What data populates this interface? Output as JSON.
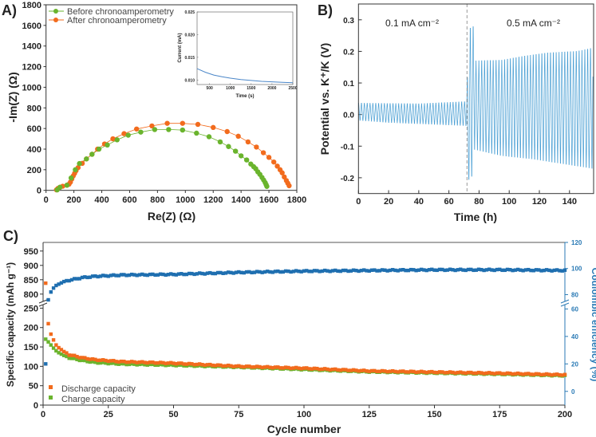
{
  "chart_data": [
    {
      "panel": "A)",
      "type": "scatter",
      "xlabel": "Re(Z) (Ω)",
      "ylabel": "-Im(Z) (Ω)",
      "xlim": [
        0,
        1800
      ],
      "ylim": [
        0,
        1800
      ],
      "xticks": [
        0,
        200,
        400,
        600,
        800,
        1000,
        1200,
        1400,
        1600,
        1800
      ],
      "yticks": [
        0,
        200,
        400,
        600,
        800,
        1000,
        1200,
        1400,
        1600,
        1800
      ],
      "legend_position": "top-left",
      "series": [
        {
          "name": "Before chronoamperometry",
          "color": "#6ab42d",
          "points": [
            [
              80,
              5
            ],
            [
              100,
              30
            ],
            [
              150,
              50
            ],
            [
              180,
              120
            ],
            [
              210,
              200
            ],
            [
              240,
              260
            ],
            [
              290,
              305
            ],
            [
              330,
              350
            ],
            [
              380,
              400
            ],
            [
              440,
              440
            ],
            [
              510,
              490
            ],
            [
              590,
              535
            ],
            [
              680,
              565
            ],
            [
              780,
              590
            ],
            [
              880,
              590
            ],
            [
              980,
              585
            ],
            [
              1080,
              555
            ],
            [
              1170,
              520
            ],
            [
              1250,
              470
            ],
            [
              1310,
              425
            ],
            [
              1360,
              380
            ],
            [
              1400,
              335
            ],
            [
              1440,
              295
            ],
            [
              1470,
              255
            ],
            [
              1490,
              230
            ],
            [
              1505,
              210
            ],
            [
              1520,
              180
            ],
            [
              1535,
              155
            ],
            [
              1550,
              125
            ],
            [
              1562,
              100
            ],
            [
              1573,
              75
            ],
            [
              1580,
              55
            ],
            [
              1585,
              38
            ]
          ]
        },
        {
          "name": "After chronoamperometry",
          "color": "#f26b1d",
          "points": [
            [
              75,
              5
            ],
            [
              85,
              18
            ],
            [
              100,
              30
            ],
            [
              120,
              40
            ],
            [
              150,
              50
            ],
            [
              165,
              60
            ],
            [
              175,
              80
            ],
            [
              185,
              110
            ],
            [
              195,
              140
            ],
            [
              205,
              165
            ],
            [
              215,
              190
            ],
            [
              230,
              220
            ],
            [
              260,
              262
            ],
            [
              290,
              305
            ],
            [
              330,
              350
            ],
            [
              370,
              400
            ],
            [
              420,
              450
            ],
            [
              480,
              500
            ],
            [
              560,
              550
            ],
            [
              650,
              595
            ],
            [
              760,
              625
            ],
            [
              870,
              650
            ],
            [
              980,
              650
            ],
            [
              1090,
              640
            ],
            [
              1200,
              610
            ],
            [
              1300,
              570
            ],
            [
              1380,
              525
            ],
            [
              1450,
              470
            ],
            [
              1510,
              420
            ],
            [
              1560,
              365
            ],
            [
              1600,
              320
            ],
            [
              1635,
              275
            ],
            [
              1660,
              235
            ],
            [
              1680,
              200
            ],
            [
              1695,
              170
            ],
            [
              1710,
              130
            ],
            [
              1725,
              95
            ],
            [
              1735,
              70
            ],
            [
              1745,
              45
            ]
          ]
        }
      ],
      "inset": {
        "type": "line",
        "xlabel": "Time (s)",
        "ylabel": "Current (mA)",
        "xlim": [
          200,
          2500
        ],
        "ylim": [
          0.009,
          0.025
        ],
        "xticks": [
          500,
          1000,
          1500,
          2000,
          2500
        ],
        "yticks": [
          "0.010",
          "0.015",
          "0.020",
          "0.025"
        ],
        "color": "#4a86c8",
        "points": [
          [
            200,
            0.0125
          ],
          [
            400,
            0.0117
          ],
          [
            600,
            0.0111
          ],
          [
            800,
            0.0107
          ],
          [
            1000,
            0.0104
          ],
          [
            1250,
            0.0101
          ],
          [
            1500,
            0.0099
          ],
          [
            1750,
            0.0097
          ],
          [
            2000,
            0.0096
          ],
          [
            2250,
            0.0095
          ],
          [
            2500,
            0.0094
          ]
        ]
      }
    },
    {
      "panel": "B)",
      "type": "line",
      "xlabel": "Time (h)",
      "ylabel": "Potential vs. K⁺/K (V)",
      "xlim": [
        0,
        156
      ],
      "ylim": [
        -0.25,
        0.35
      ],
      "xticks": [
        0,
        20,
        40,
        60,
        80,
        100,
        120,
        140
      ],
      "yticks": [
        "-0.2",
        "-0.1",
        "0.0",
        "0.1",
        "0.2",
        "0.3"
      ],
      "color": "#4a9fd4",
      "divider_time_h": 72,
      "annotations": [
        "0.1 mA cm⁻²",
        "0.5 mA cm⁻²"
      ],
      "cycle_period_h": 1.9,
      "upper_envelope": [
        [
          0,
          0.036
        ],
        [
          40,
          0.034
        ],
        [
          72,
          0.041
        ],
        [
          72.6,
          0.27
        ],
        [
          76,
          0.278
        ],
        [
          76.6,
          0.17
        ],
        [
          95,
          0.172
        ],
        [
          110,
          0.185
        ],
        [
          125,
          0.195
        ],
        [
          145,
          0.2
        ],
        [
          155,
          0.21
        ]
      ],
      "lower_envelope": [
        [
          0,
          -0.018
        ],
        [
          20,
          -0.025
        ],
        [
          72,
          -0.035
        ],
        [
          72.3,
          -0.21
        ],
        [
          76,
          -0.19
        ],
        [
          76.6,
          -0.11
        ],
        [
          95,
          -0.13
        ],
        [
          115,
          -0.14
        ],
        [
          135,
          -0.155
        ],
        [
          155,
          -0.17
        ]
      ],
      "final_value": 0.12
    },
    {
      "panel": "C)",
      "type": "scatter",
      "xlabel": "Cycle number",
      "ylabel": "Specific capacity (mAh g⁻¹)",
      "y2label": "Coulombic efficiency (%)",
      "xlim": [
        0,
        200
      ],
      "xticks": [
        0,
        25,
        50,
        75,
        100,
        125,
        150,
        175,
        200
      ],
      "yticks": [
        0,
        50,
        100,
        150,
        200,
        250,
        800,
        850,
        900,
        950
      ],
      "y_break": [
        255,
        780
      ],
      "y2ticks": [
        0,
        20,
        40,
        60,
        80,
        100,
        120
      ],
      "y2_break": [
        62,
        76
      ],
      "legend_position": "bottom-left",
      "series": [
        {
          "name": "Discharge capacity",
          "color": "#f26b1d",
          "axis": "left",
          "keyframes": [
            [
              1,
              838
            ],
            [
              2,
              210
            ],
            [
              3,
              183
            ],
            [
              4,
              168
            ],
            [
              5,
              155
            ],
            [
              6,
              148
            ],
            [
              8,
              138
            ],
            [
              10,
              130
            ],
            [
              15,
              122
            ],
            [
              20,
              117
            ],
            [
              30,
              112
            ],
            [
              50,
              108
            ],
            [
              75,
              100
            ],
            [
              100,
              95
            ],
            [
              125,
              88
            ],
            [
              150,
              85
            ],
            [
              175,
              82
            ],
            [
              200,
              78
            ]
          ]
        },
        {
          "name": "Charge capacity",
          "color": "#6ab42d",
          "axis": "left",
          "keyframes": [
            [
              1,
              170
            ],
            [
              2,
              163
            ],
            [
              3,
              155
            ],
            [
              4,
              147
            ],
            [
              5,
              140
            ],
            [
              6,
              135
            ],
            [
              8,
              128
            ],
            [
              10,
              122
            ],
            [
              15,
              115
            ],
            [
              20,
              110
            ],
            [
              30,
              106
            ],
            [
              50,
              103
            ],
            [
              75,
              98
            ],
            [
              100,
              92
            ],
            [
              125,
              86
            ],
            [
              150,
              83
            ],
            [
              175,
              80
            ],
            [
              200,
              76
            ]
          ]
        },
        {
          "name": "Coulombic efficiency",
          "color": "#1f6fb0",
          "axis": "right",
          "keyframes": [
            [
              1,
              20
            ],
            [
              2,
              76
            ],
            [
              3,
              82
            ],
            [
              4,
              85
            ],
            [
              5,
              87
            ],
            [
              6,
              88
            ],
            [
              8,
              90
            ],
            [
              10,
              91
            ],
            [
              15,
              93
            ],
            [
              20,
              94
            ],
            [
              30,
              95
            ],
            [
              50,
              95.5
            ],
            [
              75,
              97
            ],
            [
              100,
              98
            ],
            [
              125,
              98.5
            ],
            [
              150,
              99
            ],
            [
              175,
              99
            ],
            [
              200,
              98.5
            ]
          ]
        }
      ]
    }
  ]
}
